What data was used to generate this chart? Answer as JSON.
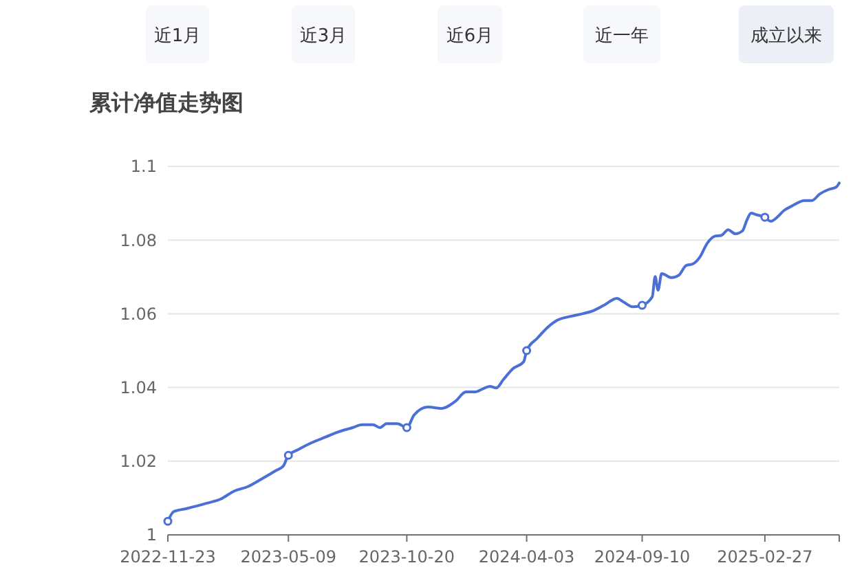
{
  "chart_data": {
    "type": "line",
    "title": "累计净值走势图",
    "annotations": [
      "近1月",
      "近3月",
      "近6月",
      "近一年",
      "成立以来"
    ],
    "x": [
      "2022-11-23",
      "2022-12-01",
      "2022-12-18",
      "2023-01-16",
      "2023-02-04",
      "2023-02-23",
      "2023-03-14",
      "2023-04-03",
      "2023-04-22",
      "2023-05-02",
      "2023-05-09",
      "2023-05-22",
      "2023-06-10",
      "2023-06-29",
      "2023-07-18",
      "2023-08-06",
      "2023-08-19",
      "2023-09-03",
      "2023-09-13",
      "2023-09-22",
      "2023-10-07",
      "2023-10-20",
      "2023-10-30",
      "2023-11-18",
      "2023-12-07",
      "2023-12-26",
      "2024-01-10",
      "2024-01-23",
      "2024-02-02",
      "2024-02-12",
      "2024-02-21",
      "2024-03-02",
      "2024-03-15",
      "2024-03-30",
      "2024-04-03",
      "2024-04-18",
      "2024-05-02",
      "2024-05-15",
      "2024-06-03",
      "2024-06-21",
      "2024-07-04",
      "2024-07-19",
      "2024-08-06",
      "2024-08-16",
      "2024-08-28",
      "2024-09-10",
      "2024-09-24",
      "2024-09-28",
      "2024-10-02",
      "2024-10-07",
      "2024-10-21",
      "2024-10-31",
      "2024-11-10",
      "2024-11-19",
      "2024-11-29",
      "2024-12-09",
      "2024-12-19",
      "2024-12-29",
      "2025-01-07",
      "2025-01-17",
      "2025-01-27",
      "2025-02-02",
      "2025-02-08",
      "2025-02-15",
      "2025-02-27",
      "2025-03-07",
      "2025-03-16",
      "2025-03-26",
      "2025-04-05",
      "2025-04-23",
      "2025-05-03",
      "2025-05-14",
      "2025-05-26",
      "2025-06-06",
      "2025-06-10"
    ],
    "series": [
      {
        "color": "#4a6fd6",
        "values": [
          1.0037,
          1.0063,
          1.0071,
          1.0086,
          1.0097,
          1.0119,
          1.0131,
          1.0153,
          1.0175,
          1.0187,
          1.0216,
          1.0231,
          1.025,
          1.0265,
          1.028,
          1.0291,
          1.0299,
          1.0299,
          1.0291,
          1.0302,
          1.0302,
          1.0291,
          1.0325,
          1.0347,
          1.0343,
          1.0362,
          1.0388,
          1.0388,
          1.0396,
          1.0403,
          1.0399,
          1.0422,
          1.0451,
          1.047,
          1.05,
          1.0534,
          1.0563,
          1.0582,
          1.0593,
          1.0601,
          1.0608,
          1.0623,
          1.0642,
          1.0631,
          1.0619,
          1.0623,
          1.0646,
          1.0701,
          1.0664,
          1.0709,
          1.0698,
          1.0705,
          1.0731,
          1.0735,
          1.0754,
          1.0791,
          1.081,
          1.0813,
          1.0828,
          1.0817,
          1.0825,
          1.0854,
          1.0873,
          1.0869,
          1.0862,
          1.0851,
          1.0862,
          1.0881,
          1.0892,
          1.0907,
          1.0907,
          1.0925,
          1.0937,
          1.0944,
          1.0955
        ]
      }
    ],
    "xlim": [
      "2022-11-23",
      "2025-06-10"
    ],
    "xticks": [
      "2022-11-23",
      "2023-05-09",
      "2023-10-20",
      "2024-04-03",
      "2024-09-10",
      "2025-02-27"
    ],
    "ylim": [
      1,
      1.1
    ],
    "yticks": [
      1,
      1.02,
      1.04,
      1.06,
      1.08,
      1.1
    ],
    "grid": "y",
    "line_style": "solid"
  }
}
